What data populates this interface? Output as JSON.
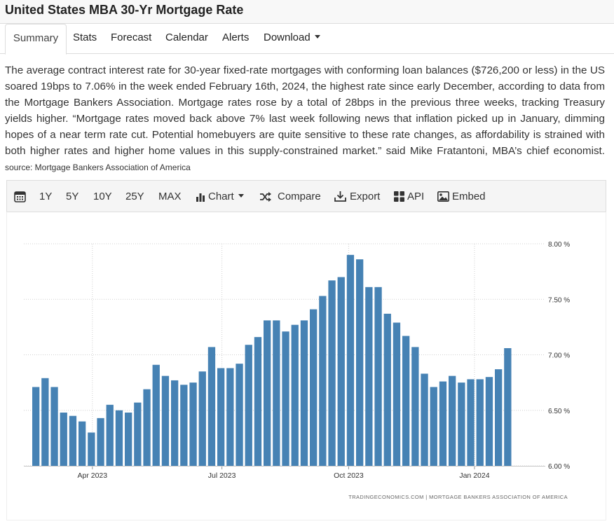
{
  "header": {
    "title": "United States MBA 30-Yr Mortgage Rate"
  },
  "tabs": [
    {
      "label": "Summary",
      "active": true
    },
    {
      "label": "Stats"
    },
    {
      "label": "Forecast"
    },
    {
      "label": "Calendar"
    },
    {
      "label": "Alerts"
    },
    {
      "label": "Download"
    }
  ],
  "description": {
    "text": "The average contract interest rate for 30-year fixed-rate mortgages with conforming loan balances ($726,200 or less) in the US soared 19bps to 7.06% in the week ended February 16th, 2024, the highest rate since early December, according to data from the Mortgage Bankers Association. Mortgage rates rose by a total of 28bps in the previous three weeks, tracking Treasury yields higher. “Mortgage rates moved back above 7% last week following news that inflation picked up in January, dimming hopes of a near term rate cut. Potential homebuyers are quite sensitive to these rate changes, as affordability is strained with both higher rates and higher home values in this supply-constrained market.” said Mike Fratantoni, MBA’s chief economist.",
    "source": "source: Mortgage Bankers Association of America"
  },
  "toolbar": {
    "calendar_icon": "calendar-icon",
    "ranges": [
      "1Y",
      "5Y",
      "10Y",
      "25Y",
      "MAX"
    ],
    "chart_label": "Chart",
    "compare_label": "Compare",
    "export_label": "Export",
    "api_label": "API",
    "embed_label": "Embed"
  },
  "chart_data": {
    "type": "bar",
    "title": "",
    "xlabel": "",
    "ylabel": "",
    "bar_color": "#4682b4",
    "grid": "dotted",
    "unit": "%",
    "ylim": [
      6.0,
      8.0
    ],
    "yticks": [
      6.0,
      6.5,
      7.0,
      7.5,
      8.0
    ],
    "ytick_labels": [
      "6.00 %",
      "6.50 %",
      "7.00 %",
      "7.50 %",
      "8.00 %"
    ],
    "xtick_labels": [
      "Apr 2023",
      "Jul 2023",
      "Oct 2023",
      "Jan 2024"
    ],
    "xtick_bar_index": [
      6.5,
      20.5,
      34.2,
      47.8
    ],
    "values": [
      6.71,
      6.79,
      6.71,
      6.48,
      6.45,
      6.4,
      6.3,
      6.43,
      6.55,
      6.5,
      6.48,
      6.57,
      6.69,
      6.91,
      6.81,
      6.77,
      6.73,
      6.75,
      6.85,
      7.07,
      6.88,
      6.88,
      6.92,
      7.09,
      7.16,
      7.31,
      7.31,
      7.21,
      7.27,
      7.31,
      7.41,
      7.53,
      7.67,
      7.7,
      7.9,
      7.86,
      7.61,
      7.61,
      7.37,
      7.29,
      7.17,
      7.07,
      6.83,
      6.71,
      6.76,
      6.81,
      6.75,
      6.78,
      6.78,
      6.8,
      6.87,
      7.06
    ],
    "attribution": "TRADINGECONOMICS.COM  |  MORTGAGE BANKERS ASSOCIATION OF AMERICA"
  }
}
